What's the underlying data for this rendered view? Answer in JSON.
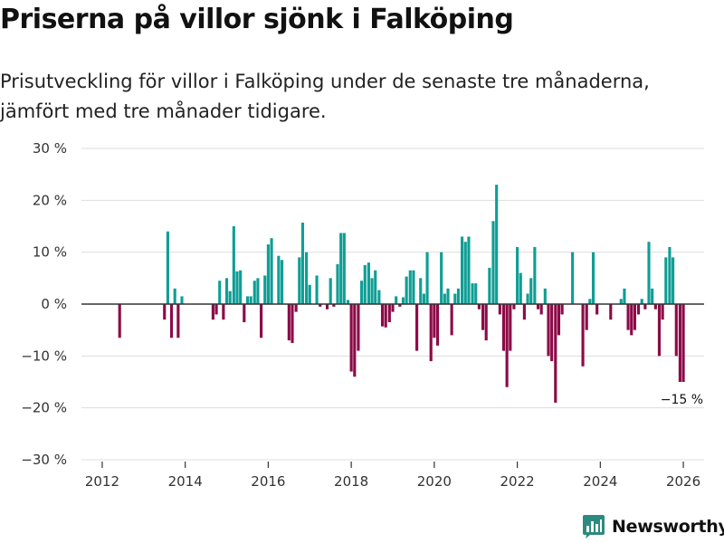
{
  "title": "Priserna på villor sjönk i Falköping",
  "subtitle": "Prisutveckling för villor i Falköping under de senaste tre månaderna, jämfört med tre månader tidigare.",
  "brand": {
    "name": "Newsworthy",
    "icon": "bar-chart-logo-icon"
  },
  "colors": {
    "positive": "#0f9e95",
    "negative": "#8c0a47",
    "grid": "#dddddd",
    "axis": "#333333",
    "brand": "#2d8a7e"
  },
  "chart_data": {
    "type": "bar",
    "title": "Priserna på villor sjönk i Falköping",
    "xlabel": "",
    "ylabel": "",
    "unit": "%",
    "ylim": [
      -30,
      30
    ],
    "yticks": [
      30,
      20,
      10,
      0,
      -10,
      -20,
      -30
    ],
    "ytick_labels": [
      "30 %",
      "20 %",
      "10 %",
      "0 %",
      "−10 %",
      "−20 %",
      "−30 %"
    ],
    "xlim": [
      2011.5,
      2026.5
    ],
    "xticks": [
      2012,
      2014,
      2016,
      2018,
      2020,
      2022,
      2024,
      2026
    ],
    "xtick_labels": [
      "2012",
      "2014",
      "2016",
      "2018",
      "2020",
      "2022",
      "2024",
      "2026"
    ],
    "grid": true,
    "last_value_label": "−15 %",
    "points": [
      {
        "x": 2012.42,
        "y": -6.5
      },
      {
        "x": 2013.5,
        "y": -3
      },
      {
        "x": 2013.58,
        "y": 14
      },
      {
        "x": 2013.67,
        "y": -6.5
      },
      {
        "x": 2013.75,
        "y": 3
      },
      {
        "x": 2013.83,
        "y": -6.5
      },
      {
        "x": 2013.92,
        "y": 1.5
      },
      {
        "x": 2014.67,
        "y": -3
      },
      {
        "x": 2014.75,
        "y": -2
      },
      {
        "x": 2014.83,
        "y": 4.5
      },
      {
        "x": 2014.92,
        "y": -3
      },
      {
        "x": 2015.0,
        "y": 5
      },
      {
        "x": 2015.08,
        "y": 2.5
      },
      {
        "x": 2015.17,
        "y": 15
      },
      {
        "x": 2015.25,
        "y": 6.3
      },
      {
        "x": 2015.33,
        "y": 6.5
      },
      {
        "x": 2015.42,
        "y": -3.5
      },
      {
        "x": 2015.5,
        "y": 1.5
      },
      {
        "x": 2015.58,
        "y": 1.5
      },
      {
        "x": 2015.67,
        "y": 4.5
      },
      {
        "x": 2015.75,
        "y": 5
      },
      {
        "x": 2015.83,
        "y": -6.5
      },
      {
        "x": 2015.92,
        "y": 5.5
      },
      {
        "x": 2016.0,
        "y": 11.5
      },
      {
        "x": 2016.08,
        "y": 12.7
      },
      {
        "x": 2016.25,
        "y": 9.3
      },
      {
        "x": 2016.33,
        "y": 8.5
      },
      {
        "x": 2016.5,
        "y": -7
      },
      {
        "x": 2016.58,
        "y": -7.5
      },
      {
        "x": 2016.67,
        "y": -1.5
      },
      {
        "x": 2016.75,
        "y": 9
      },
      {
        "x": 2016.83,
        "y": 15.7
      },
      {
        "x": 2016.92,
        "y": 10
      },
      {
        "x": 2017.0,
        "y": 3.7
      },
      {
        "x": 2017.17,
        "y": 5.5
      },
      {
        "x": 2017.25,
        "y": -0.5
      },
      {
        "x": 2017.42,
        "y": -1
      },
      {
        "x": 2017.5,
        "y": 5
      },
      {
        "x": 2017.58,
        "y": -0.5
      },
      {
        "x": 2017.67,
        "y": 7.7
      },
      {
        "x": 2017.75,
        "y": 13.7
      },
      {
        "x": 2017.83,
        "y": 13.7
      },
      {
        "x": 2017.92,
        "y": 0.8
      },
      {
        "x": 2018.0,
        "y": -13
      },
      {
        "x": 2018.08,
        "y": -14
      },
      {
        "x": 2018.17,
        "y": -9
      },
      {
        "x": 2018.25,
        "y": 4.5
      },
      {
        "x": 2018.33,
        "y": 7.5
      },
      {
        "x": 2018.42,
        "y": 8
      },
      {
        "x": 2018.5,
        "y": 5
      },
      {
        "x": 2018.58,
        "y": 6.5
      },
      {
        "x": 2018.67,
        "y": 2.7
      },
      {
        "x": 2018.75,
        "y": -4.3
      },
      {
        "x": 2018.83,
        "y": -4.5
      },
      {
        "x": 2018.92,
        "y": -3.5
      },
      {
        "x": 2019.0,
        "y": -1.5
      },
      {
        "x": 2019.08,
        "y": 1.5
      },
      {
        "x": 2019.17,
        "y": -0.5
      },
      {
        "x": 2019.25,
        "y": 1.3
      },
      {
        "x": 2019.33,
        "y": 5.3
      },
      {
        "x": 2019.42,
        "y": 6.5
      },
      {
        "x": 2019.5,
        "y": 6.5
      },
      {
        "x": 2019.58,
        "y": -9
      },
      {
        "x": 2019.67,
        "y": 5
      },
      {
        "x": 2019.75,
        "y": 2
      },
      {
        "x": 2019.83,
        "y": 10
      },
      {
        "x": 2019.92,
        "y": -11
      },
      {
        "x": 2020.0,
        "y": -6.5
      },
      {
        "x": 2020.08,
        "y": -8
      },
      {
        "x": 2020.17,
        "y": 10
      },
      {
        "x": 2020.25,
        "y": 2
      },
      {
        "x": 2020.33,
        "y": 3
      },
      {
        "x": 2020.42,
        "y": -6
      },
      {
        "x": 2020.5,
        "y": 2
      },
      {
        "x": 2020.58,
        "y": 3
      },
      {
        "x": 2020.67,
        "y": 13
      },
      {
        "x": 2020.75,
        "y": 12
      },
      {
        "x": 2020.83,
        "y": 13
      },
      {
        "x": 2020.92,
        "y": 4
      },
      {
        "x": 2021.0,
        "y": 4
      },
      {
        "x": 2021.08,
        "y": -1
      },
      {
        "x": 2021.17,
        "y": -5
      },
      {
        "x": 2021.25,
        "y": -7
      },
      {
        "x": 2021.33,
        "y": 7
      },
      {
        "x": 2021.42,
        "y": 16
      },
      {
        "x": 2021.5,
        "y": 23
      },
      {
        "x": 2021.58,
        "y": -2
      },
      {
        "x": 2021.67,
        "y": -9
      },
      {
        "x": 2021.75,
        "y": -16
      },
      {
        "x": 2021.83,
        "y": -9
      },
      {
        "x": 2021.92,
        "y": -1
      },
      {
        "x": 2022.0,
        "y": 11
      },
      {
        "x": 2022.08,
        "y": 6
      },
      {
        "x": 2022.17,
        "y": -3
      },
      {
        "x": 2022.25,
        "y": 2
      },
      {
        "x": 2022.33,
        "y": 5
      },
      {
        "x": 2022.42,
        "y": 11
      },
      {
        "x": 2022.5,
        "y": -1
      },
      {
        "x": 2022.58,
        "y": -2
      },
      {
        "x": 2022.67,
        "y": 3
      },
      {
        "x": 2022.75,
        "y": -10
      },
      {
        "x": 2022.83,
        "y": -11
      },
      {
        "x": 2022.92,
        "y": -19
      },
      {
        "x": 2023.0,
        "y": -6
      },
      {
        "x": 2023.08,
        "y": -2
      },
      {
        "x": 2023.33,
        "y": 10
      },
      {
        "x": 2023.58,
        "y": -12
      },
      {
        "x": 2023.67,
        "y": -5
      },
      {
        "x": 2023.75,
        "y": 1
      },
      {
        "x": 2023.83,
        "y": 10
      },
      {
        "x": 2023.92,
        "y": -2
      },
      {
        "x": 2024.25,
        "y": -3
      },
      {
        "x": 2024.5,
        "y": 1
      },
      {
        "x": 2024.58,
        "y": 3
      },
      {
        "x": 2024.67,
        "y": -5
      },
      {
        "x": 2024.75,
        "y": -6
      },
      {
        "x": 2024.83,
        "y": -5
      },
      {
        "x": 2024.92,
        "y": -2
      },
      {
        "x": 2025.0,
        "y": 1
      },
      {
        "x": 2025.08,
        "y": -1
      },
      {
        "x": 2025.17,
        "y": 12
      },
      {
        "x": 2025.25,
        "y": 3
      },
      {
        "x": 2025.33,
        "y": -1
      },
      {
        "x": 2025.42,
        "y": -10
      },
      {
        "x": 2025.5,
        "y": -3
      },
      {
        "x": 2025.58,
        "y": 9
      },
      {
        "x": 2025.67,
        "y": 11
      },
      {
        "x": 2025.75,
        "y": 9
      },
      {
        "x": 2025.83,
        "y": -10
      },
      {
        "x": 2025.92,
        "y": -15
      },
      {
        "x": 2026.0,
        "y": -15
      }
    ]
  }
}
